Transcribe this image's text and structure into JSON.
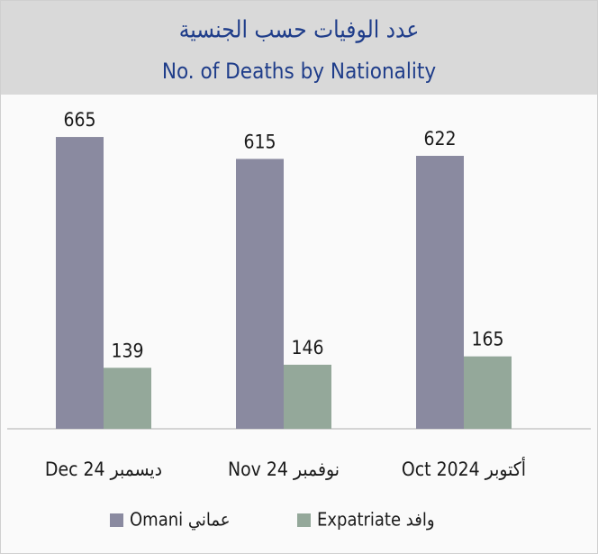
{
  "chart_data": {
    "type": "bar",
    "title": "عدد الوفيات حسب الجنسية",
    "subtitle": "No. of Deaths by Nationality",
    "categories": [
      "Dec 24 ديسمبر",
      "Nov 24 نوفمبر",
      "Oct 2024 أكتوبر"
    ],
    "series": [
      {
        "name": "Omani عماني",
        "color": "#8a8aa0",
        "values": [
          665,
          615,
          622
        ]
      },
      {
        "name": "Expatriate وافد",
        "color": "#94a89a",
        "values": [
          139,
          146,
          165
        ]
      }
    ],
    "ylim": [
      0,
      700
    ]
  }
}
